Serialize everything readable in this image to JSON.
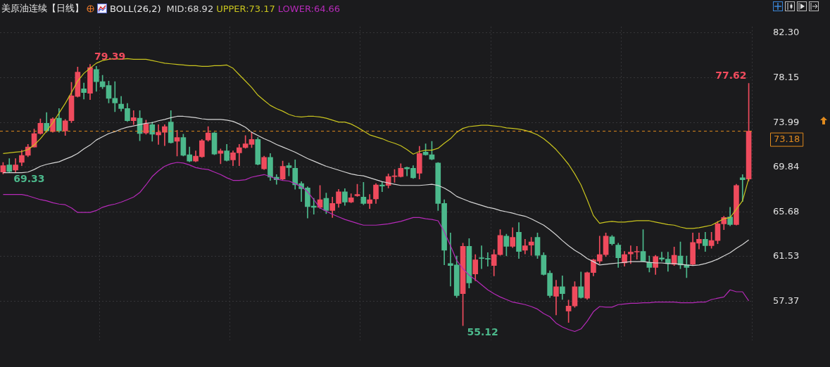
{
  "chart_data": {
    "type": "candlestick",
    "title": "美原油连续【日线】",
    "subtitle": "BOLL(26,2)",
    "legend": "top",
    "grid": true,
    "tick_labels": "y",
    "categories": [
      null,
      null,
      null,
      null,
      null,
      null,
      null,
      null,
      null,
      null,
      null,
      null,
      null,
      null,
      null,
      null,
      null,
      null,
      null,
      null,
      null,
      null,
      null,
      null,
      null,
      null,
      null,
      null,
      null,
      null,
      null,
      null,
      null,
      null,
      null,
      null,
      null,
      null,
      null,
      null,
      null,
      null,
      null,
      null,
      null,
      null,
      null,
      null,
      null,
      null,
      null,
      null,
      null,
      null,
      null,
      null,
      null,
      null,
      null,
      null,
      null,
      null,
      null,
      null,
      null,
      null,
      null,
      null,
      null,
      null,
      null,
      null,
      null,
      null,
      null,
      null,
      null,
      null,
      null,
      null,
      null,
      null,
      null,
      null,
      null,
      null,
      null,
      null,
      null,
      null,
      null,
      null,
      null,
      null,
      null,
      null,
      null,
      null,
      null,
      null,
      null,
      null,
      null,
      null,
      null,
      null,
      null,
      null,
      null,
      null,
      null,
      null,
      null,
      null,
      null,
      null,
      null,
      null,
      null,
      null,
      null
    ],
    "ohlc": [
      [
        69.38,
        70.28,
        69.2,
        69.98
      ],
      [
        70.04,
        70.63,
        69.33,
        69.44
      ],
      [
        69.56,
        70.63,
        69.38,
        70.04
      ],
      [
        70.28,
        71.41,
        69.98,
        70.93
      ],
      [
        70.93,
        71.95,
        70.81,
        71.71
      ],
      [
        71.71,
        73.37,
        71.71,
        72.96
      ],
      [
        72.96,
        74.33,
        72.9,
        73.91
      ],
      [
        73.91,
        74.92,
        73.08,
        73.2
      ],
      [
        73.14,
        74.44,
        73.08,
        74.33
      ],
      [
        74.39,
        75.28,
        73.08,
        73.2
      ],
      [
        73.2,
        74.27,
        72.78,
        74.15
      ],
      [
        74.15,
        77.72,
        73.97,
        76.47
      ],
      [
        76.41,
        79.15,
        76.35,
        78.67
      ],
      [
        77.12,
        77.66,
        76.17,
        76.77
      ],
      [
        76.71,
        79.39,
        76.11,
        79.09
      ],
      [
        78.91,
        79.21,
        76.89,
        77.78
      ],
      [
        77.78,
        78.37,
        77.12,
        77.3
      ],
      [
        77.42,
        77.84,
        75.81,
        76.23
      ],
      [
        76.23,
        77.78,
        74.98,
        75.81
      ],
      [
        75.7,
        76.41,
        75.04,
        75.28
      ],
      [
        75.28,
        75.76,
        74.09,
        74.15
      ],
      [
        74.15,
        75.1,
        73.79,
        74.44
      ],
      [
        74.39,
        75.1,
        72.3,
        72.96
      ],
      [
        73.02,
        74.21,
        72.9,
        73.85
      ],
      [
        73.79,
        74.03,
        72.24,
        72.9
      ],
      [
        72.84,
        73.79,
        71.95,
        73.08
      ],
      [
        73.08,
        73.79,
        71.83,
        73.61
      ],
      [
        74.03,
        75.1,
        72.06,
        72.12
      ],
      [
        72.24,
        73.26,
        70.87,
        72.6
      ],
      [
        72.6,
        72.9,
        70.87,
        70.93
      ],
      [
        70.99,
        71.71,
        70.34,
        70.4
      ],
      [
        70.4,
        71.35,
        70.34,
        70.87
      ],
      [
        70.81,
        72.42,
        70.75,
        72.3
      ],
      [
        72.36,
        73.61,
        72.24,
        73.02
      ],
      [
        73.02,
        73.08,
        70.99,
        71.05
      ],
      [
        71.11,
        71.53,
        70.16,
        71.35
      ],
      [
        71.35,
        71.95,
        70.4,
        70.46
      ],
      [
        70.52,
        71.35,
        69.98,
        71.17
      ],
      [
        71.17,
        71.95,
        69.98,
        71.65
      ],
      [
        71.65,
        72.78,
        71.59,
        72.01
      ],
      [
        71.95,
        73.08,
        71.65,
        72.42
      ],
      [
        72.42,
        72.6,
        70.04,
        70.1
      ],
      [
        69.68,
        70.87,
        69.62,
        70.75
      ],
      [
        70.75,
        71.11,
        68.61,
        68.91
      ],
      [
        68.91,
        69.15,
        68.25,
        68.67
      ],
      [
        68.73,
        70.4,
        68.67,
        69.92
      ],
      [
        69.98,
        70.22,
        69.03,
        69.8
      ],
      [
        69.74,
        70.52,
        67.78,
        68.19
      ],
      [
        68.31,
        68.49,
        66.65,
        67.84
      ],
      [
        67.9,
        68.02,
        65.1,
        66.17
      ],
      [
        66.23,
        66.94,
        65.46,
        66.11
      ],
      [
        66.11,
        68.14,
        65.99,
        66.82
      ],
      [
        66.94,
        67.43,
        65.52,
        65.81
      ],
      [
        65.81,
        67.06,
        65.16,
        66.47
      ],
      [
        66.47,
        67.78,
        66.11,
        67.55
      ],
      [
        67.55,
        67.84,
        66.29,
        66.59
      ],
      [
        66.59,
        67.37,
        66.53,
        67.0
      ],
      [
        67.18,
        68.25,
        67.12,
        67.3
      ],
      [
        67.06,
        68.43,
        66.35,
        66.47
      ],
      [
        66.47,
        67.3,
        65.99,
        66.82
      ],
      [
        66.88,
        68.31,
        66.47,
        68.19
      ],
      [
        68.19,
        68.49,
        67.55,
        68.08
      ],
      [
        68.14,
        69.21,
        67.9,
        68.97
      ],
      [
        68.97,
        69.62,
        68.43,
        69.03
      ],
      [
        68.97,
        70.16,
        68.91,
        69.74
      ],
      [
        69.8,
        69.86,
        69.03,
        69.68
      ],
      [
        69.74,
        69.98,
        68.79,
        68.85
      ],
      [
        69.27,
        71.77,
        68.73,
        71.11
      ],
      [
        71.23,
        72.01,
        70.93,
        70.99
      ],
      [
        70.99,
        72.24,
        70.52,
        70.58
      ],
      [
        70.22,
        70.28,
        65.81,
        66.47
      ],
      [
        66.47,
        66.82,
        60.76,
        62.12
      ],
      [
        60.88,
        63.73,
        58.79,
        60.7
      ],
      [
        60.76,
        61.59,
        57.72,
        57.9
      ],
      [
        58.08,
        62.78,
        55.12,
        62.48
      ],
      [
        62.48,
        63.2,
        58.61,
        59.09
      ],
      [
        59.92,
        61.71,
        59.27,
        61.23
      ],
      [
        61.41,
        62.54,
        60.4,
        61.35
      ],
      [
        61.35,
        61.89,
        60.64,
        61.29
      ],
      [
        60.7,
        62.18,
        59.74,
        61.71
      ],
      [
        61.71,
        64.03,
        61.65,
        63.49
      ],
      [
        63.43,
        63.61,
        61.59,
        62.48
      ],
      [
        62.48,
        64.21,
        62.36,
        63.32
      ],
      [
        63.79,
        64.69,
        61.35,
        62.01
      ],
      [
        62.12,
        63.14,
        61.77,
        62.54
      ],
      [
        62.6,
        63.32,
        61.65,
        62.9
      ],
      [
        63.32,
        63.73,
        61.35,
        61.65
      ],
      [
        61.65,
        61.89,
        59.8,
        59.86
      ],
      [
        59.98,
        60.22,
        57.72,
        57.9
      ],
      [
        57.84,
        59.33,
        56.11,
        58.73
      ],
      [
        58.73,
        59.74,
        57.54,
        58.08
      ],
      [
        56.47,
        57.48,
        55.4,
        56.94
      ],
      [
        56.94,
        59.21,
        56.82,
        58.73
      ],
      [
        58.73,
        60.1,
        57.66,
        57.72
      ],
      [
        57.66,
        60.1,
        57.54,
        60.04
      ],
      [
        60.04,
        61.29,
        59.74,
        61.23
      ],
      [
        61.11,
        63.43,
        60.88,
        61.71
      ],
      [
        61.71,
        63.73,
        61.53,
        63.43
      ],
      [
        63.37,
        63.49,
        62.6,
        62.72
      ],
      [
        62.6,
        62.78,
        60.52,
        61.41
      ],
      [
        60.94,
        62.01,
        60.64,
        61.71
      ],
      [
        61.77,
        62.54,
        60.88,
        61.95
      ],
      [
        61.95,
        62.48,
        61.29,
        62.01
      ],
      [
        62.01,
        64.03,
        61.06,
        61.11
      ],
      [
        60.99,
        61.59,
        60.1,
        60.52
      ],
      [
        60.52,
        61.65,
        59.86,
        61.53
      ],
      [
        61.41,
        61.95,
        61.11,
        61.29
      ],
      [
        61.29,
        61.95,
        60.16,
        60.88
      ],
      [
        60.82,
        62.42,
        60.7,
        61.65
      ],
      [
        61.59,
        62.9,
        60.4,
        60.75
      ],
      [
        60.75,
        61.59,
        59.57,
        60.52
      ],
      [
        60.82,
        63.73,
        60.75,
        62.84
      ],
      [
        62.78,
        63.73,
        62.24,
        63.14
      ],
      [
        63.14,
        63.79,
        62.01,
        62.54
      ],
      [
        62.54,
        63.79,
        62.3,
        63.02
      ],
      [
        63.02,
        64.8,
        62.72,
        64.57
      ],
      [
        64.57,
        65.28,
        64.03,
        65.16
      ],
      [
        65.22,
        66.11,
        64.39,
        64.51
      ],
      [
        64.51,
        68.25,
        64.45,
        68.14
      ],
      [
        68.85,
        69.15,
        66.65,
        68.67
      ],
      [
        68.73,
        77.62,
        68.55,
        73.18
      ]
    ],
    "series": [
      {
        "type": "line",
        "name": "MID:68.92",
        "color": "#d6d6d6",
        "values": [
          69.32,
          69.32,
          69.32,
          69.32,
          69.38,
          69.62,
          69.92,
          70.1,
          70.22,
          70.34,
          70.58,
          70.81,
          71.11,
          71.53,
          71.89,
          72.36,
          72.66,
          72.96,
          73.14,
          73.38,
          73.55,
          73.67,
          73.79,
          73.91,
          73.97,
          74.15,
          74.27,
          74.44,
          74.56,
          74.56,
          74.5,
          74.44,
          74.33,
          74.27,
          74.27,
          74.27,
          74.21,
          74.09,
          73.85,
          73.55,
          73.08,
          72.78,
          72.48,
          72.24,
          71.95,
          71.71,
          71.47,
          71.23,
          70.93,
          70.64,
          70.4,
          70.16,
          69.92,
          69.74,
          69.56,
          69.38,
          69.21,
          69.09,
          69.03,
          68.85,
          68.67,
          68.49,
          68.37,
          68.25,
          68.14,
          68.14,
          68.14,
          68.14,
          68.19,
          68.25,
          68.14,
          67.9,
          67.55,
          67.12,
          66.88,
          66.65,
          66.47,
          66.29,
          66.11,
          65.99,
          65.81,
          65.69,
          65.57,
          65.4,
          65.28,
          65.04,
          64.74,
          64.45,
          64.03,
          63.55,
          63.02,
          62.54,
          62.12,
          61.77,
          61.35,
          61.06,
          60.75,
          60.82,
          60.88,
          60.94,
          60.99,
          61.06,
          61.06,
          61.06,
          60.99,
          60.94,
          60.94,
          60.88,
          60.88,
          60.82,
          60.75,
          60.7,
          60.75,
          60.88,
          61.06,
          61.29,
          61.59,
          61.89,
          62.3,
          62.66,
          63.08
        ]
      },
      {
        "type": "line",
        "name": "UPPER:73.17",
        "color": "#c9c41e",
        "values": [
          71.11,
          71.17,
          71.23,
          71.29,
          71.47,
          71.89,
          72.48,
          73.2,
          73.97,
          74.86,
          75.76,
          76.77,
          77.84,
          78.55,
          79.03,
          79.5,
          79.74,
          79.86,
          79.92,
          79.86,
          79.92,
          79.86,
          79.86,
          79.86,
          79.74,
          79.62,
          79.5,
          79.44,
          79.38,
          79.33,
          79.27,
          79.27,
          79.21,
          79.21,
          79.27,
          79.27,
          79.33,
          79.03,
          78.43,
          77.84,
          77.24,
          76.53,
          76.05,
          75.58,
          75.28,
          75.04,
          74.74,
          74.56,
          74.5,
          74.56,
          74.56,
          74.5,
          74.39,
          74.21,
          74.03,
          74.03,
          73.85,
          73.55,
          73.2,
          72.84,
          72.66,
          72.48,
          72.24,
          72.06,
          71.83,
          71.47,
          71.05,
          71.29,
          71.41,
          71.41,
          71.59,
          72.06,
          72.48,
          73.08,
          73.44,
          73.61,
          73.67,
          73.73,
          73.73,
          73.67,
          73.61,
          73.49,
          73.44,
          73.38,
          73.26,
          73.08,
          72.84,
          72.48,
          72.01,
          71.47,
          70.81,
          70.1,
          69.21,
          68.19,
          66.82,
          65.34,
          64.62,
          64.74,
          64.8,
          64.74,
          64.74,
          64.8,
          64.86,
          64.86,
          64.86,
          64.74,
          64.62,
          64.51,
          64.45,
          64.27,
          64.15,
          64.15,
          64.21,
          64.33,
          64.45,
          64.74,
          65.04,
          65.16,
          65.93,
          66.71,
          68.79
        ]
      },
      {
        "type": "line",
        "name": "LOWER:64.66",
        "color": "#b52ab8",
        "values": [
          67.3,
          67.3,
          67.3,
          67.3,
          67.18,
          67.0,
          66.82,
          66.71,
          66.53,
          66.41,
          66.35,
          66.05,
          65.63,
          65.63,
          65.63,
          65.81,
          66.11,
          66.29,
          66.41,
          66.59,
          66.82,
          67.06,
          67.48,
          68.19,
          68.97,
          69.5,
          69.92,
          70.16,
          70.28,
          70.22,
          70.04,
          69.8,
          69.68,
          69.62,
          69.38,
          69.15,
          68.85,
          68.61,
          68.61,
          68.67,
          68.91,
          69.03,
          69.15,
          68.97,
          68.73,
          68.61,
          68.55,
          68.31,
          68.02,
          67.55,
          66.82,
          66.05,
          65.75,
          65.46,
          65.22,
          64.98,
          64.8,
          64.62,
          64.45,
          64.45,
          64.45,
          64.51,
          64.57,
          64.69,
          64.8,
          64.98,
          65.16,
          65.16,
          65.04,
          64.98,
          64.86,
          63.85,
          62.54,
          61.17,
          60.4,
          59.8,
          59.39,
          58.91,
          58.44,
          58.08,
          57.78,
          57.54,
          57.3,
          57.19,
          57.07,
          56.89,
          56.65,
          56.24,
          55.94,
          55.34,
          54.99,
          54.75,
          54.57,
          54.81,
          55.52,
          56.41,
          56.89,
          56.83,
          56.83,
          57.07,
          57.13,
          57.19,
          57.19,
          57.24,
          57.24,
          57.3,
          57.3,
          57.3,
          57.3,
          57.24,
          57.24,
          57.24,
          57.3,
          57.3,
          57.54,
          57.66,
          57.78,
          58.44,
          58.26,
          58.26,
          57.42
        ]
      }
    ],
    "ylim": [
      53.74,
      82.9
    ],
    "yticks": [
      {
        "value": 82.3,
        "label": "82.30"
      },
      78.15,
      73.99,
      69.84,
      65.68,
      61.53,
      57.37
    ],
    "ref_lines": [
      {
        "axis": "y",
        "value": 73.18,
        "label": "73.18",
        "color": "#e08a1e",
        "line_style": "dashed"
      }
    ],
    "annotations": [
      "79.39",
      "69.33",
      "55.12",
      "77.62"
    ]
  }
}
